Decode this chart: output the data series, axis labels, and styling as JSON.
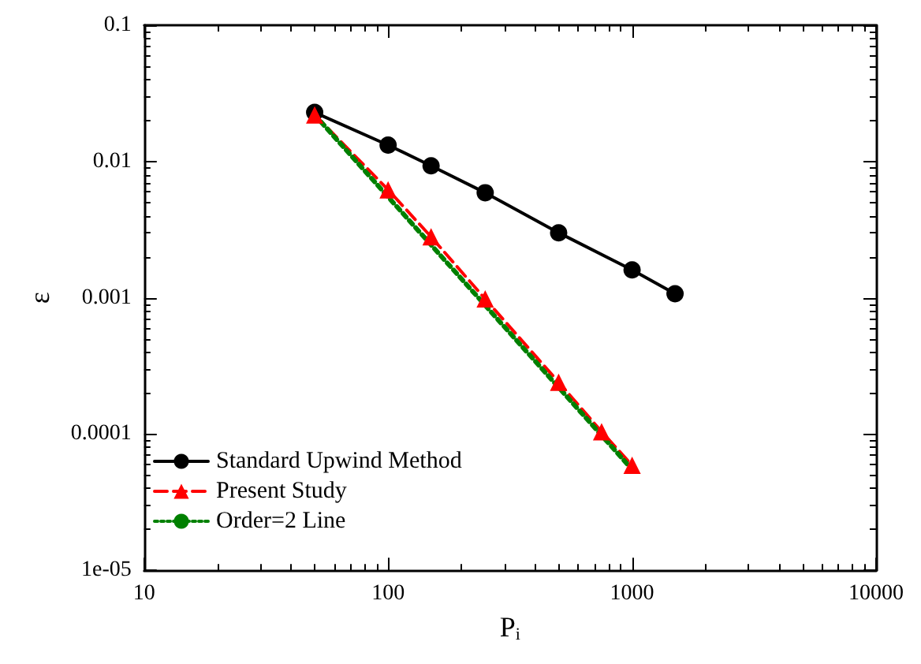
{
  "chart_data": {
    "type": "line",
    "xlabel": "P$_{i}$",
    "ylabel": "ε",
    "log": "xy",
    "xlim": [
      10,
      10000
    ],
    "xticks": [
      10,
      100,
      1000,
      10000
    ],
    "ylim": [
      1e-05,
      0.1
    ],
    "yticks": [
      {
        "value": 1e-05,
        "label": "1e-05"
      },
      0.0001,
      0.001,
      0.01,
      0.1
    ],
    "grid": false,
    "legend": "bottom left",
    "series": [
      {
        "name": "Standard Upwind Method",
        "color": "#000000",
        "marker": "circle",
        "line_style": "solid",
        "x": [
          50,
          100,
          150,
          250,
          500,
          1000,
          1500
        ],
        "values": [
          0.0229,
          0.0132,
          0.0093,
          0.0059,
          0.003,
          0.0016,
          0.00107
        ]
      },
      {
        "name": "Present Study",
        "color": "#ff0000",
        "marker": "triangle",
        "line_style": "dashed",
        "x": [
          50,
          100,
          150,
          250,
          500,
          750,
          1000
        ],
        "values": [
          0.022,
          0.0062,
          0.0028,
          0.00098,
          0.00024,
          0.000104,
          5.9e-05
        ]
      },
      {
        "name": "Order=2 Line",
        "color": "#008000",
        "marker": "none",
        "line_style": "dotted",
        "x": [
          50,
          1000
        ],
        "values": [
          0.022,
          5.5e-05
        ]
      }
    ]
  }
}
